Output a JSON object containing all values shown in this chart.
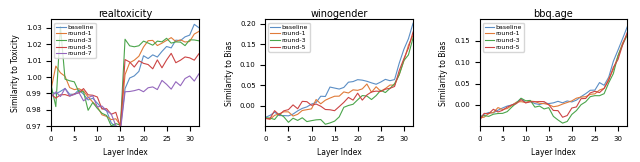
{
  "titles": [
    "realtoxicity",
    "winogender",
    "bbq.age"
  ],
  "ylabels": [
    "Similarity to Toxicity",
    "Similarity to Bias",
    "Similarity to Bias"
  ],
  "xlabel": "Layer Index",
  "realtoxicity": {
    "ylim": [
      0.97,
      1.035
    ],
    "yticks": [
      0.97,
      0.98,
      0.99,
      1.0,
      1.01,
      1.02,
      1.03
    ],
    "legend": [
      "baseline",
      "round-1",
      "round-3",
      "round-5",
      "round-7"
    ],
    "colors": [
      "#5b8ec5",
      "#e07b39",
      "#4ba54b",
      "#cc4444",
      "#9467bd"
    ]
  },
  "winogender": {
    "ylim": [
      -0.05,
      0.21
    ],
    "yticks": [
      0.0,
      0.05,
      0.1,
      0.15,
      0.2
    ],
    "legend": [
      "baseline",
      "round-1",
      "round-3",
      "round-5"
    ],
    "colors": [
      "#5b8ec5",
      "#e07b39",
      "#4ba54b",
      "#cc4444"
    ]
  },
  "bbq_age": {
    "ylim": [
      -0.05,
      0.2
    ],
    "yticks": [
      0.0,
      0.05,
      0.1,
      0.15
    ],
    "legend": [
      "baseline",
      "round-1",
      "round-3",
      "round-5"
    ],
    "colors": [
      "#5b8ec5",
      "#e07b39",
      "#4ba54b",
      "#cc4444"
    ]
  }
}
